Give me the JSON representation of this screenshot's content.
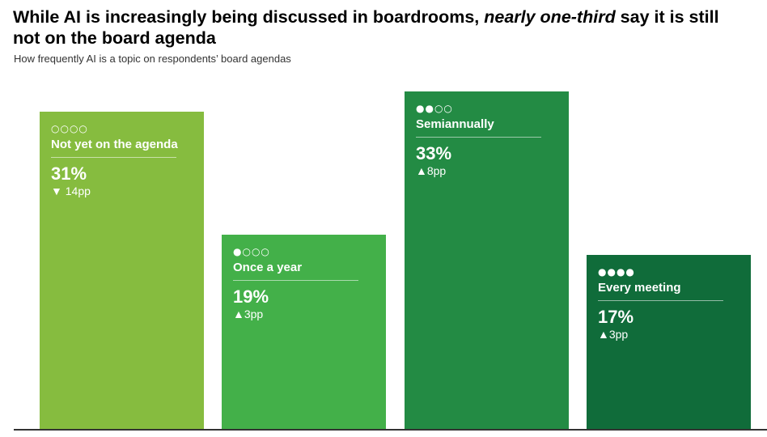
{
  "header": {
    "title_pre": "While AI is increasingly being discussed in boardrooms, ",
    "title_em": "nearly one-third",
    "title_post": " say it is still not on the board agenda",
    "subtitle": "How frequently AI is a topic on respondents’ board agendas"
  },
  "chart_data": {
    "type": "bar",
    "title": "While AI is increasingly being discussed in boardrooms, nearly one-third say it is still not on the board agenda",
    "subtitle": "How frequently AI is a topic on respondents’ board agendas",
    "categories": [
      "Not yet on the agenda",
      "Once a year",
      "Semiannually",
      "Every meeting"
    ],
    "values": [
      31,
      19,
      33,
      17
    ],
    "value_labels": [
      "31%",
      "19%",
      "33%",
      "17%"
    ],
    "change_labels": [
      "▼ 14pp",
      "▲3pp",
      "▲8pp",
      "▲3pp"
    ],
    "dot_labels": [
      "○○○○",
      "●○○○",
      "●●○○",
      "●●●●"
    ],
    "colors": [
      "#86bc3f",
      "#43b049",
      "#238b44",
      "#106c3a"
    ],
    "ylim": [
      0,
      33
    ],
    "grid": false,
    "legend": "none"
  }
}
